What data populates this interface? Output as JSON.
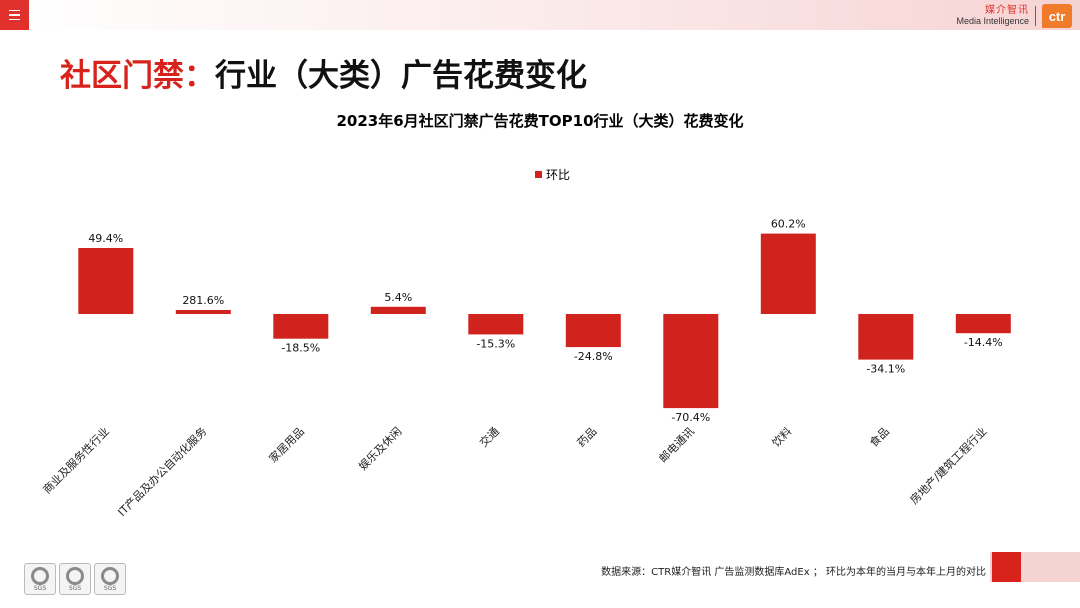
{
  "header": {
    "brand_cn": "媒介智讯",
    "brand_en": "Media Intelligence",
    "logo_text": "ctr"
  },
  "page_title": {
    "part1": "社区门禁：",
    "part2": "行业（大类）广告花费变化"
  },
  "colors": {
    "accent": "#d8231d",
    "bar": "#d0231e",
    "brand_logo": "#f07b2a"
  },
  "chart_data": {
    "type": "bar",
    "title": "2023年6月社区门禁广告花费TOP10行业（大类）花费变化",
    "legend": "top",
    "grid": false,
    "series": [
      {
        "name": "环比",
        "values": [
          49.4,
          281.6,
          -18.5,
          5.4,
          -15.3,
          -24.8,
          -70.4,
          60.2,
          -34.1,
          -14.4
        ],
        "labels": [
          "49.4%",
          "281.6%",
          "-18.5%",
          "5.4%",
          "-15.3%",
          "-24.8%",
          "-70.4%",
          "60.2%",
          "-34.1%",
          "-14.4%"
        ]
      }
    ],
    "categories": [
      "商业及服务性行业",
      "IT产品及办公自动化服务",
      "家居用品",
      "娱乐及休闲",
      "交通",
      "药品",
      "邮电通讯",
      "饮料",
      "食品",
      "房地产/建筑工程行业"
    ]
  },
  "footer": {
    "source_note": "数据来源：CTR媒介智讯 广告监测数据库AdEx ； 环比为本年的当月与本年上月的对比",
    "sgs_labels": [
      "SGS",
      "SGS",
      "SGS"
    ]
  }
}
